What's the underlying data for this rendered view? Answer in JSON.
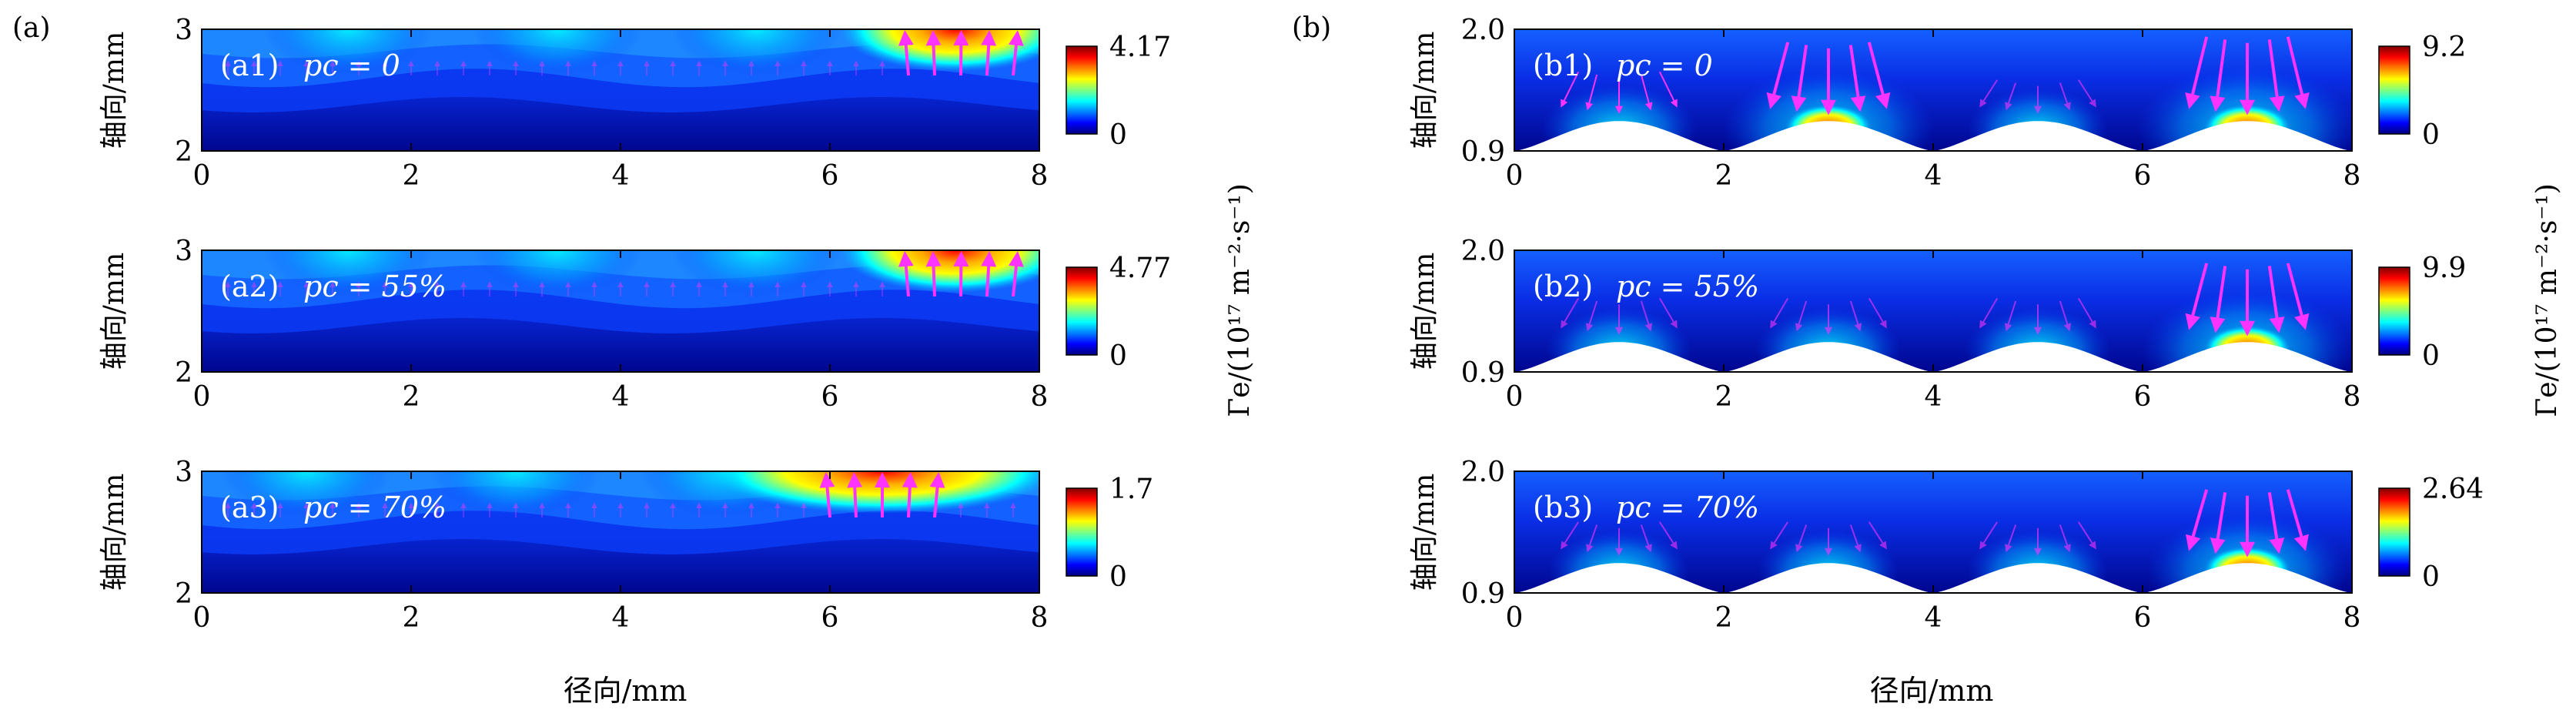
{
  "figure": {
    "panel_group_labels": [
      "(a)",
      "(b)"
    ],
    "y_axis_label": "轴向/mm",
    "x_axis_label": "径向/mm",
    "colorbar_label": "Γe/(10¹⁷ m⁻²·s⁻¹)",
    "colormap": [
      "#00007f",
      "#0000ff",
      "#007fff",
      "#00ffff",
      "#7fff7f",
      "#ffff00",
      "#ff7f00",
      "#ff0000",
      "#7f0000"
    ],
    "arrow_color": "#ff33ff"
  },
  "chart_data": [
    {
      "id": "a1",
      "type": "heatmap",
      "label": "(a1)",
      "condition": "pc = 0",
      "xlim": [
        0,
        8
      ],
      "ylim": [
        2,
        3
      ],
      "x_ticks": [
        "0",
        "2",
        "4",
        "6",
        "8"
      ],
      "y_ticks": [
        "2",
        "3"
      ],
      "colorbar": {
        "min": "0",
        "max": "4.17"
      },
      "surface": "flat"
    },
    {
      "id": "a2",
      "type": "heatmap",
      "label": "(a2)",
      "condition": "pc = 55%",
      "xlim": [
        0,
        8
      ],
      "ylim": [
        2,
        3
      ],
      "x_ticks": [
        "0",
        "2",
        "4",
        "6",
        "8"
      ],
      "y_ticks": [
        "2",
        "3"
      ],
      "colorbar": {
        "min": "0",
        "max": "4.77"
      },
      "surface": "flat"
    },
    {
      "id": "a3",
      "type": "heatmap",
      "label": "(a3)",
      "condition": "pc = 70%",
      "xlim": [
        0,
        8
      ],
      "ylim": [
        2,
        3
      ],
      "x_ticks": [
        "0",
        "2",
        "4",
        "6",
        "8"
      ],
      "y_ticks": [
        "2",
        "3"
      ],
      "colorbar": {
        "min": "0",
        "max": "1.7"
      },
      "surface": "flat"
    },
    {
      "id": "b1",
      "type": "heatmap",
      "label": "(b1)",
      "condition": "pc = 0",
      "xlim": [
        0,
        8
      ],
      "ylim": [
        0.9,
        2.0
      ],
      "x_ticks": [
        "0",
        "2",
        "4",
        "6",
        "8"
      ],
      "y_ticks": [
        "0.9",
        "2.0"
      ],
      "colorbar": {
        "min": "0",
        "max": "9.2"
      },
      "surface": "bumps",
      "bump_centers": [
        1,
        3,
        5,
        7
      ]
    },
    {
      "id": "b2",
      "type": "heatmap",
      "label": "(b2)",
      "condition": "pc = 55%",
      "xlim": [
        0,
        8
      ],
      "ylim": [
        0.9,
        2.0
      ],
      "x_ticks": [
        "0",
        "2",
        "4",
        "6",
        "8"
      ],
      "y_ticks": [
        "0.9",
        "2.0"
      ],
      "colorbar": {
        "min": "0",
        "max": "9.9"
      },
      "surface": "bumps",
      "bump_centers": [
        1,
        3,
        5,
        7
      ]
    },
    {
      "id": "b3",
      "type": "heatmap",
      "label": "(b3)",
      "condition": "pc = 70%",
      "xlim": [
        0,
        8
      ],
      "ylim": [
        0.9,
        2.0
      ],
      "x_ticks": [
        "0",
        "2",
        "4",
        "6",
        "8"
      ],
      "y_ticks": [
        "0.9",
        "2.0"
      ],
      "colorbar": {
        "min": "0",
        "max": "2.64"
      },
      "surface": "bumps",
      "bump_centers": [
        1,
        3,
        5,
        7
      ]
    }
  ]
}
